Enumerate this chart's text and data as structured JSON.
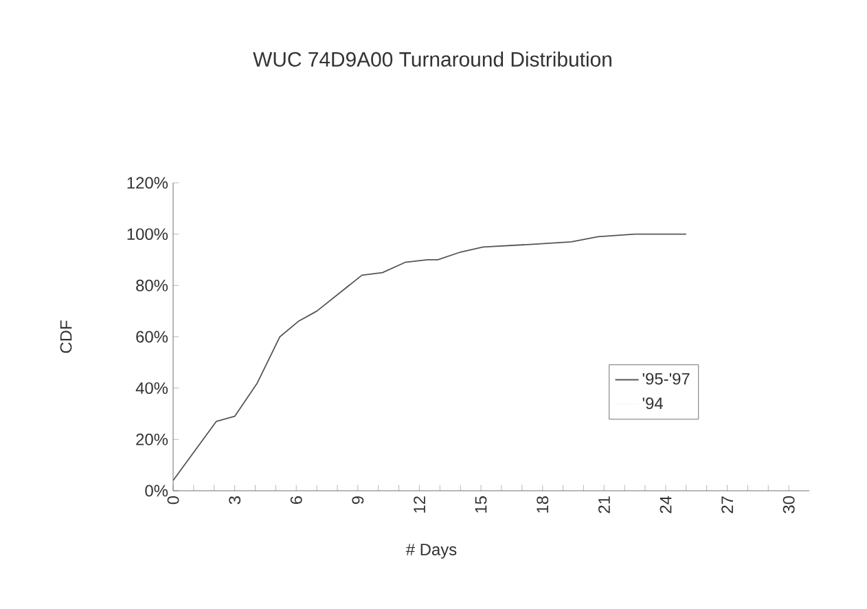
{
  "chart_data": {
    "type": "line",
    "title": "WUC 74D9A00 Turnaround Distribution",
    "xlabel": "# Days",
    "ylabel": "CDF",
    "xlim": [
      0,
      31
    ],
    "xticks": [
      0,
      {
        "value": 1,
        "label": null
      },
      {
        "value": 2,
        "label": null
      },
      3,
      {
        "value": 4,
        "label": null
      },
      {
        "value": 5,
        "label": null
      },
      6,
      {
        "value": 7,
        "label": null
      },
      {
        "value": 8,
        "label": null
      },
      9,
      {
        "value": 10,
        "label": null
      },
      {
        "value": 11,
        "label": null
      },
      12,
      {
        "value": 13,
        "label": null
      },
      {
        "value": 14,
        "label": null
      },
      15,
      {
        "value": 16,
        "label": null
      },
      {
        "value": 17,
        "label": null
      },
      18,
      {
        "value": 19,
        "label": null
      },
      {
        "value": 20,
        "label": null
      },
      21,
      {
        "value": 22,
        "label": null
      },
      {
        "value": 23,
        "label": null
      },
      24,
      {
        "value": 25,
        "label": null
      },
      {
        "value": 26,
        "label": null
      },
      27,
      {
        "value": 28,
        "label": null
      },
      {
        "value": 29,
        "label": null
      },
      30
    ],
    "ylim": [
      0,
      120
    ],
    "yticks": [
      {
        "value": 0,
        "label": "0%"
      },
      {
        "value": 20,
        "label": "20%"
      },
      {
        "value": 40,
        "label": "40%"
      },
      {
        "value": 60,
        "label": "60%"
      },
      {
        "value": 80,
        "label": "80%"
      },
      {
        "value": 100,
        "label": "100%"
      },
      {
        "value": 120,
        "label": "120%"
      }
    ],
    "legend": "right",
    "grid": false,
    "marker": "none",
    "line_style": "solid",
    "series": [
      {
        "name": "'95-'97",
        "color": "#555555",
        "x": [
          0,
          2.1,
          3,
          4.1,
          5.2,
          6.1,
          7,
          8.1,
          9.2,
          10.2,
          11.3,
          12.4,
          12.9,
          14,
          15.1,
          17.4,
          19.4,
          20.7,
          22.5,
          25
        ],
        "values": [
          4,
          27,
          29,
          42,
          60,
          66,
          70,
          77,
          84,
          85,
          89,
          90,
          90,
          93,
          95,
          96,
          97,
          99,
          100,
          100
        ]
      },
      {
        "name": "'94",
        "color": "#f4fafa"
      }
    ]
  }
}
